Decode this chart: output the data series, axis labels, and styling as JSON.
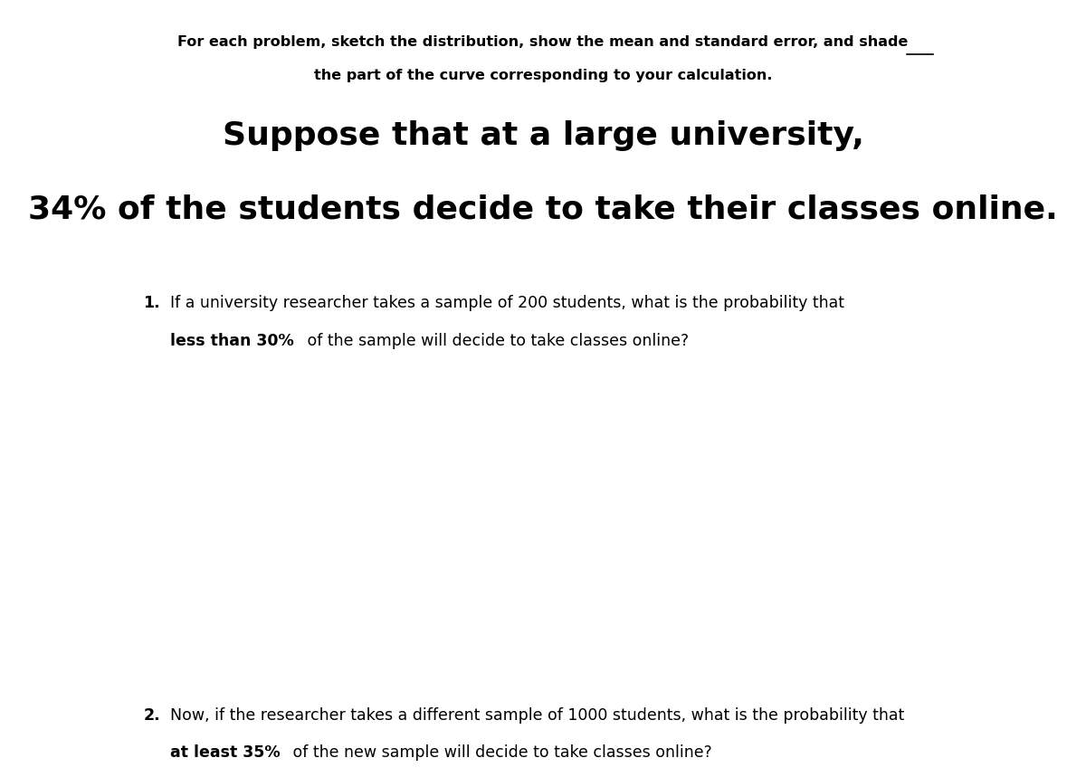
{
  "background_color": "#ffffff",
  "fig_width": 12.0,
  "fig_height": 8.59,
  "dpi": 100,
  "header_line1": "For each problem, sketch the distribution, show the mean and standard error, and ",
  "header_underline_word": "shade",
  "header_line2": "the part of the curve corresponding to your calculation.",
  "title_line1": "Suppose that at a large university,",
  "title_line2": "34% of the students decide to take their classes online.",
  "q1_number": "1.",
  "q1_line1_normal": "If a university researcher takes a sample of 200 students, what is the probability that",
  "q1_line2_bold": "less than 30%",
  "q1_line2_normal": " of the sample will decide to take classes online?",
  "q2_number": "2.",
  "q2_line1_normal": "Now, if the researcher takes a different sample of 1000 students, what is the probability that",
  "q2_line2_bold": "at least 35%",
  "q2_line2_normal": " of the new sample will decide to take classes online?"
}
